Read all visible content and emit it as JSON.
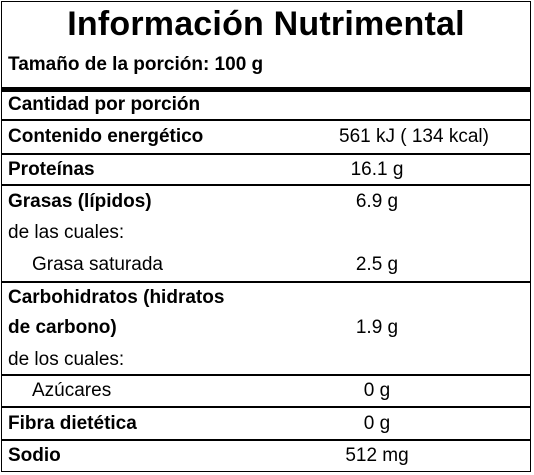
{
  "title": "Información Nutrimental",
  "serving": "Tamaño de la porción: 100 g",
  "header": "Cantidad por porción",
  "energy": {
    "label": "Contenido energético",
    "value": "561 kJ  ( 134 kcal)"
  },
  "protein": {
    "label": "Proteínas",
    "value": "16.1 g"
  },
  "fat": {
    "label": "Grasas (lípidos)",
    "value": "6.9 g",
    "sub": "de las cuales:"
  },
  "saturated": {
    "label": "Grasa saturada",
    "value": "2.5 g"
  },
  "carbs": {
    "label_1": "Carbohidratos (hidratos",
    "label_2": "de carbono)",
    "value": "1.9 g",
    "sub": "de los cuales:"
  },
  "sugars": {
    "label": "Azúcares",
    "value": "0 g"
  },
  "fiber": {
    "label": "Fibra dietética",
    "value": "0 g"
  },
  "sodium": {
    "label": "Sodio",
    "value": "512 mg"
  }
}
